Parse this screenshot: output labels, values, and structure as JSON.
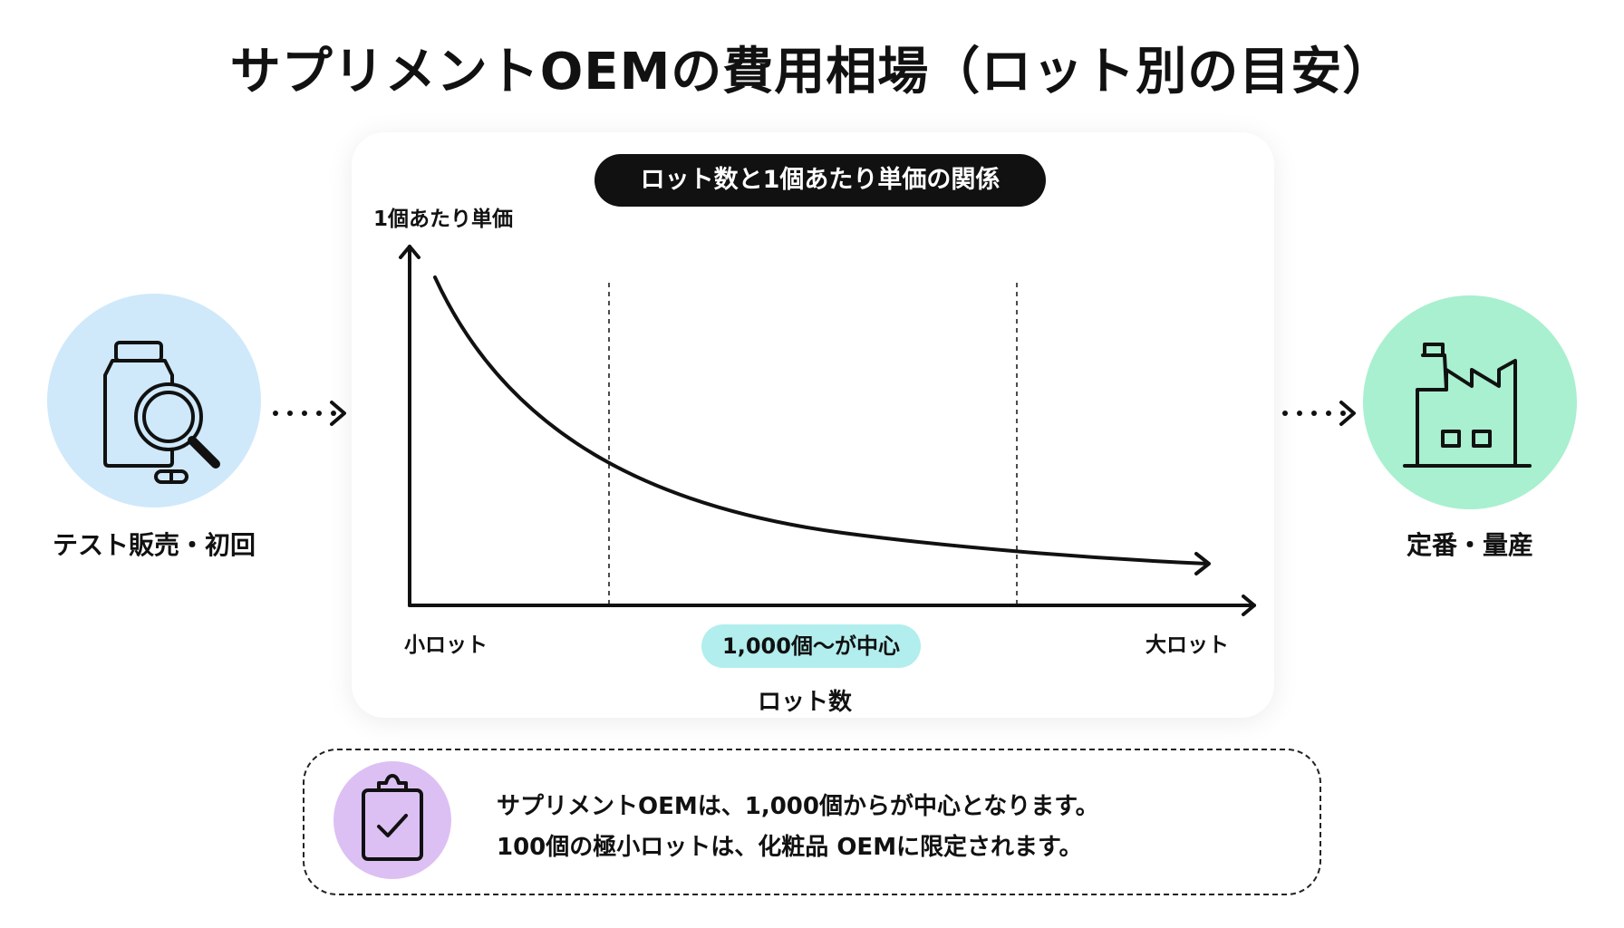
{
  "title": "サプリメントOEMの費用相場（ロット別の目安）",
  "left_stage": {
    "label": "テスト販売・初回",
    "icon": "supplement-bottle-magnifier-icon"
  },
  "right_stage": {
    "label": "定番・量産",
    "icon": "factory-icon"
  },
  "chart_data": {
    "type": "line",
    "title": "ロット数と1個あたり単価の関係",
    "ylabel": "1個あたり単価",
    "xlabel": "ロット数",
    "x_ticks": [
      "小ロット",
      "大ロット"
    ],
    "highlight_label": "1,000個～が中心",
    "trend": "decreasing"
  },
  "note": {
    "icon": "clipboard-check-icon",
    "lines": [
      "サプリメントOEMは、1,000個からが中心となります。",
      "100個の極小ロットは、化粧品 OEMに限定されます。"
    ]
  },
  "colors": {
    "left_circle": "#cfe9fb",
    "right_circle": "#a8f0cf",
    "note_circle": "#dcc0f4",
    "highlight_pill": "#b2eeee"
  }
}
